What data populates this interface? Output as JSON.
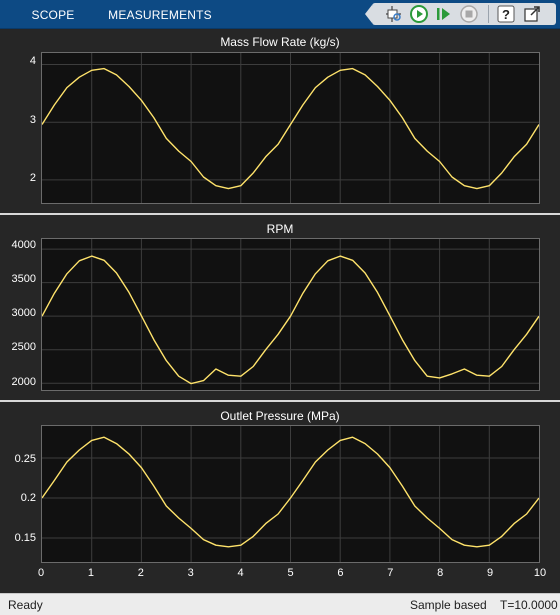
{
  "toolbar": {
    "tabs": [
      {
        "label": "SCOPE"
      },
      {
        "label": "MEASUREMENTS"
      }
    ],
    "buttons": [
      {
        "icon": "highlight-simulink-block-icon"
      },
      {
        "icon": "run-icon"
      },
      {
        "icon": "step-forward-icon"
      },
      {
        "icon": "stop-icon"
      },
      {
        "icon": "help-icon"
      },
      {
        "icon": "undock-icon"
      }
    ],
    "accent_color": "#0d4a84"
  },
  "plots": [
    {
      "title": "Mass Flow Rate (kg/s)",
      "yticks": [
        "4",
        "3",
        "2"
      ]
    },
    {
      "title": "RPM",
      "yticks": [
        "4000",
        "3500",
        "3000",
        "2500",
        "2000"
      ]
    },
    {
      "title": "Outlet Pressure (MPa)",
      "yticks": [
        "0.25",
        "0.2",
        "0.15"
      ]
    }
  ],
  "xaxis": {
    "ticks": [
      "0",
      "1",
      "2",
      "3",
      "4",
      "5",
      "6",
      "7",
      "8",
      "9",
      "10"
    ]
  },
  "status": {
    "left": "Ready",
    "mode": "Sample based",
    "time": "T=10.0000"
  },
  "chart_data": [
    {
      "type": "line",
      "title": "Mass Flow Rate (kg/s)",
      "xlim": [
        0,
        10
      ],
      "ylim": [
        1.6,
        4.2
      ],
      "line_color": "#ffe36b",
      "grid": true,
      "series": [
        {
          "x": [
            0,
            0.25,
            0.5,
            0.75,
            1.0,
            1.25,
            1.5,
            1.75,
            2.0,
            2.25,
            2.5,
            2.75,
            3.0,
            3.25,
            3.5,
            3.75,
            4.0,
            4.25,
            4.5,
            4.75,
            5.0,
            5.25,
            5.5,
            5.75,
            6.0,
            6.25,
            6.5,
            6.75,
            7.0,
            7.25,
            7.5,
            7.75,
            8.0,
            8.25,
            8.5,
            8.75,
            9.0,
            9.25,
            9.5,
            9.75,
            10.0
          ],
          "values": [
            2.96,
            3.3,
            3.6,
            3.78,
            3.9,
            3.93,
            3.82,
            3.62,
            3.38,
            3.08,
            2.72,
            2.5,
            2.32,
            2.05,
            1.9,
            1.85,
            1.9,
            2.12,
            2.4,
            2.62,
            2.96,
            3.3,
            3.6,
            3.78,
            3.9,
            3.93,
            3.82,
            3.62,
            3.38,
            3.08,
            2.72,
            2.5,
            2.32,
            2.05,
            1.9,
            1.85,
            1.9,
            2.12,
            2.4,
            2.62,
            2.96
          ]
        }
      ]
    },
    {
      "type": "line",
      "title": "RPM",
      "xlim": [
        0,
        10
      ],
      "ylim": [
        1900,
        4150
      ],
      "line_color": "#ffe36b",
      "grid": true,
      "series": [
        {
          "x": [
            0,
            0.25,
            0.5,
            0.75,
            1.0,
            1.25,
            1.5,
            1.75,
            2.0,
            2.25,
            2.5,
            2.75,
            3.0,
            3.25,
            3.5,
            3.75,
            4.0,
            4.25,
            4.5,
            4.75,
            5.0,
            5.25,
            5.5,
            5.75,
            6.0,
            6.25,
            6.5,
            6.75,
            7.0,
            7.25,
            7.5,
            7.75,
            8.0,
            8.25,
            8.5,
            8.75,
            9.0,
            9.25,
            9.5,
            9.75,
            10.0
          ],
          "values": [
            3000,
            3342,
            3632,
            3825,
            3895,
            3832,
            3643,
            3354,
            3006,
            2651,
            2338,
            2106,
            1995,
            2040,
            2213,
            2120,
            2105,
            2250,
            2500,
            2730,
            3000,
            3342,
            3632,
            3825,
            3895,
            3832,
            3643,
            3354,
            3006,
            2651,
            2338,
            2106,
            2080,
            2140,
            2213,
            2120,
            2105,
            2250,
            2500,
            2730,
            3000
          ]
        }
      ]
    },
    {
      "type": "line",
      "title": "Outlet Pressure (MPa)",
      "xlim": [
        0,
        10
      ],
      "ylim": [
        0.12,
        0.29
      ],
      "line_color": "#ffe36b",
      "grid": true,
      "series": [
        {
          "x": [
            0,
            0.25,
            0.5,
            0.75,
            1.0,
            1.25,
            1.5,
            1.75,
            2.0,
            2.25,
            2.5,
            2.75,
            3.0,
            3.25,
            3.5,
            3.75,
            4.0,
            4.25,
            4.5,
            4.75,
            5.0,
            5.25,
            5.5,
            5.75,
            6.0,
            6.25,
            6.5,
            6.75,
            7.0,
            7.25,
            7.5,
            7.75,
            8.0,
            8.25,
            8.5,
            8.75,
            9.0,
            9.25,
            9.5,
            9.75,
            10.0
          ],
          "values": [
            0.2,
            0.222,
            0.245,
            0.26,
            0.272,
            0.276,
            0.268,
            0.255,
            0.238,
            0.215,
            0.19,
            0.175,
            0.162,
            0.148,
            0.141,
            0.139,
            0.141,
            0.152,
            0.168,
            0.18,
            0.2,
            0.222,
            0.245,
            0.26,
            0.272,
            0.276,
            0.268,
            0.255,
            0.238,
            0.215,
            0.19,
            0.175,
            0.162,
            0.148,
            0.141,
            0.139,
            0.141,
            0.152,
            0.168,
            0.18,
            0.2
          ]
        }
      ]
    }
  ]
}
